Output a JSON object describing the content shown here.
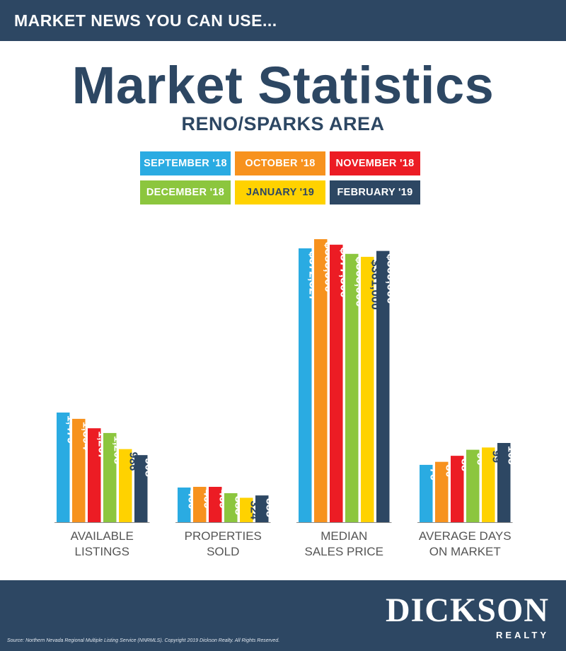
{
  "header": {
    "tagline": "MARKET NEWS YOU CAN USE..."
  },
  "title": "Market Statistics",
  "subtitle": "RENO/SPARKS AREA",
  "colors": {
    "navy": "#2d4763",
    "blue": "#2aabe2",
    "orange": "#f7921e",
    "red": "#ec1c24",
    "green": "#8cc63e",
    "yellow": "#ffd200"
  },
  "chart_data": {
    "type": "bar",
    "series": [
      {
        "name": "SEPTEMBER '18",
        "color": "#2aabe2"
      },
      {
        "name": "OCTOBER '18",
        "color": "#f7921e"
      },
      {
        "name": "NOVEMBER '18",
        "color": "#ec1c24"
      },
      {
        "name": "DECEMBER '18",
        "color": "#8cc63e"
      },
      {
        "name": "JANUARY '19",
        "color": "#ffd200"
      },
      {
        "name": "FEBRUARY '19",
        "color": "#2d4763"
      }
    ],
    "groups": [
      {
        "label_lines": [
          "AVAILABLE",
          "LISTINGS"
        ],
        "values": [
          1479,
          1394,
          1267,
          1203,
          986,
          905
        ],
        "labels": [
          "1,479",
          "1,394",
          "1,267",
          "1,203",
          "986",
          "905"
        ]
      },
      {
        "label_lines": [
          "PROPERTIES",
          "SOLD"
        ],
        "values": [
          460,
          469,
          469,
          385,
          324,
          355
        ],
        "labels": [
          "460",
          "469",
          "469",
          "385",
          "324",
          "355"
        ]
      },
      {
        "label_lines": [
          "MEDIAN",
          "SALES PRICE"
        ],
        "values": [
          372527,
          385000,
          377500,
          365000,
          361000,
          369000
        ],
        "labels": [
          "$372,527",
          "$385,000",
          "$377,500",
          "$365,000",
          "$361,000",
          "$369,000"
        ]
      },
      {
        "label_lines": [
          "AVERAGE DAYS",
          "ON MARKET"
        ],
        "values": [
          76,
          80,
          88,
          96,
          99,
          105
        ],
        "labels": [
          "76",
          "80",
          "88",
          "96",
          "99",
          "105"
        ]
      }
    ]
  },
  "footer": {
    "source": "Source: Northern Nevada Regional Multiple Listing Service (NNRMLS). Copyright 2019 Dickson Realty. All Rights Reserved.",
    "logo_main": "DICKSON",
    "logo_sub": "REALTY"
  }
}
